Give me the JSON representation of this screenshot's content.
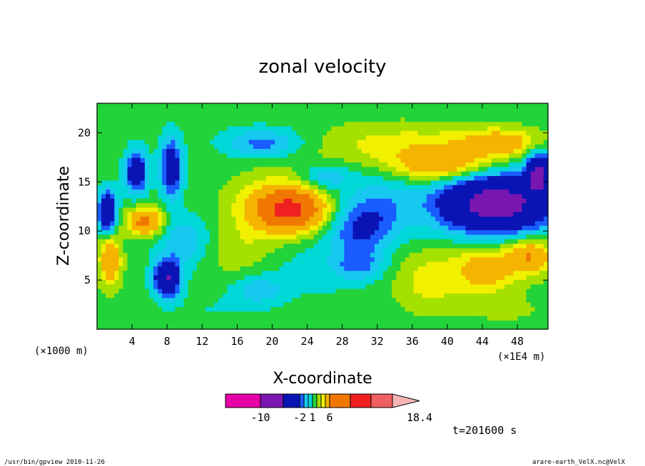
{
  "chart_data": {
    "type": "heatmap",
    "title": "zonal velocity",
    "xlabel": "X-coordinate",
    "ylabel": "Z-coordinate",
    "x_unit_label": "(×1E4 m)",
    "y_unit_label": "(×1000 m)",
    "xlim": [
      0,
      51.5
    ],
    "ylim": [
      0,
      23
    ],
    "x_ticks": [
      4,
      8,
      12,
      16,
      20,
      24,
      28,
      32,
      36,
      40,
      44,
      48
    ],
    "y_ticks": [
      5,
      10,
      15,
      20
    ],
    "time_label": "t=201600 s",
    "colorbar": {
      "levels": [
        -14,
        -10,
        -6,
        -2,
        -1,
        0,
        1,
        2,
        3,
        4,
        6,
        9,
        12,
        15,
        18.4
      ],
      "colors": [
        "#e600a8",
        "#7a16b0",
        "#0a14b4",
        "#1a5cff",
        "#17c8f0",
        "#00d7d7",
        "#22d33a",
        "#a4e000",
        "#f0f000",
        "#f5b400",
        "#f07800",
        "#f02020",
        "#f06060",
        "#f5b4b4"
      ],
      "tick_labels": [
        "-10",
        "-2",
        "1",
        "6",
        "18.4"
      ],
      "tick_values": [
        -10,
        -2,
        1,
        6,
        18.4
      ]
    },
    "background_value": 1.5,
    "blobs": [
      {
        "x": 21,
        "z": 12.6,
        "rx": 5.5,
        "rz": 3.2,
        "v": 4.5
      },
      {
        "x": 22,
        "z": 12.2,
        "rx": 3.8,
        "rz": 2.0,
        "v": 7.5
      },
      {
        "x": 35,
        "z": 18.8,
        "rx": 10,
        "rz": 2.2,
        "v": 3.5
      },
      {
        "x": 39.5,
        "z": 16.7,
        "rx": 5.5,
        "rz": 1.6,
        "v": 5.5
      },
      {
        "x": 46,
        "z": 19,
        "rx": 4.5,
        "rz": 1.4,
        "v": 5
      },
      {
        "x": 45.5,
        "z": 12.8,
        "rx": 6.5,
        "rz": 3.0,
        "v": -8
      },
      {
        "x": 32,
        "z": 12.5,
        "rx": 4.5,
        "rz": 3.2,
        "v": -0.8
      },
      {
        "x": 30,
        "z": 10,
        "rx": 3.5,
        "rz": 2.5,
        "v": -1.5
      },
      {
        "x": 25,
        "z": 6.5,
        "rx": 6,
        "rz": 3.2,
        "v": 0.5
      },
      {
        "x": 30,
        "z": 6.5,
        "rx": 2.8,
        "rz": 1.5,
        "v": -0.8
      },
      {
        "x": 38,
        "z": 5,
        "rx": 4,
        "rz": 3.2,
        "v": 3.5
      },
      {
        "x": 44.5,
        "z": 6.2,
        "rx": 3.5,
        "rz": 2.5,
        "v": 5
      },
      {
        "x": 49.5,
        "z": 7.5,
        "rx": 2.5,
        "rz": 1.8,
        "v": 6
      },
      {
        "x": 18.5,
        "z": 4,
        "rx": 3,
        "rz": 1.5,
        "v": -0.6
      },
      {
        "x": 8,
        "z": 5.2,
        "rx": 1.5,
        "rz": 1.8,
        "v": -6
      },
      {
        "x": 5.5,
        "z": 11,
        "rx": 2,
        "rz": 1.4,
        "v": 7
      },
      {
        "x": 4.5,
        "z": 16,
        "rx": 1.3,
        "rz": 2.2,
        "v": -4
      },
      {
        "x": 8.5,
        "z": 16.5,
        "rx": 1.2,
        "rz": 3.0,
        "v": -4
      },
      {
        "x": 1.5,
        "z": 7,
        "rx": 1.2,
        "rz": 2.5,
        "v": 6
      },
      {
        "x": 1.2,
        "z": 12,
        "rx": 1.0,
        "rz": 2.0,
        "v": -6
      },
      {
        "x": 10,
        "z": 9,
        "rx": 3,
        "rz": 2.5,
        "v": -1
      },
      {
        "x": 19,
        "z": 19,
        "rx": 4.5,
        "rz": 1.5,
        "v": -1.5
      },
      {
        "x": 26,
        "z": 15.5,
        "rx": 3,
        "rz": 1.3,
        "v": -1
      },
      {
        "x": 50.5,
        "z": 16,
        "rx": 1.5,
        "rz": 2,
        "v": -6
      },
      {
        "x": 16,
        "z": 8,
        "rx": 4,
        "rz": 2.5,
        "v": 2.8
      },
      {
        "x": 13,
        "z": 2,
        "rx": 5,
        "rz": 1.8,
        "v": 1.0
      },
      {
        "x": 47,
        "z": 2,
        "rx": 5,
        "rz": 1.5,
        "v": 2.2
      }
    ]
  },
  "footer": {
    "left": "/usr/bin/gpview  2010-11-26",
    "right": "arare-earth_VelX.nc@VelX"
  }
}
